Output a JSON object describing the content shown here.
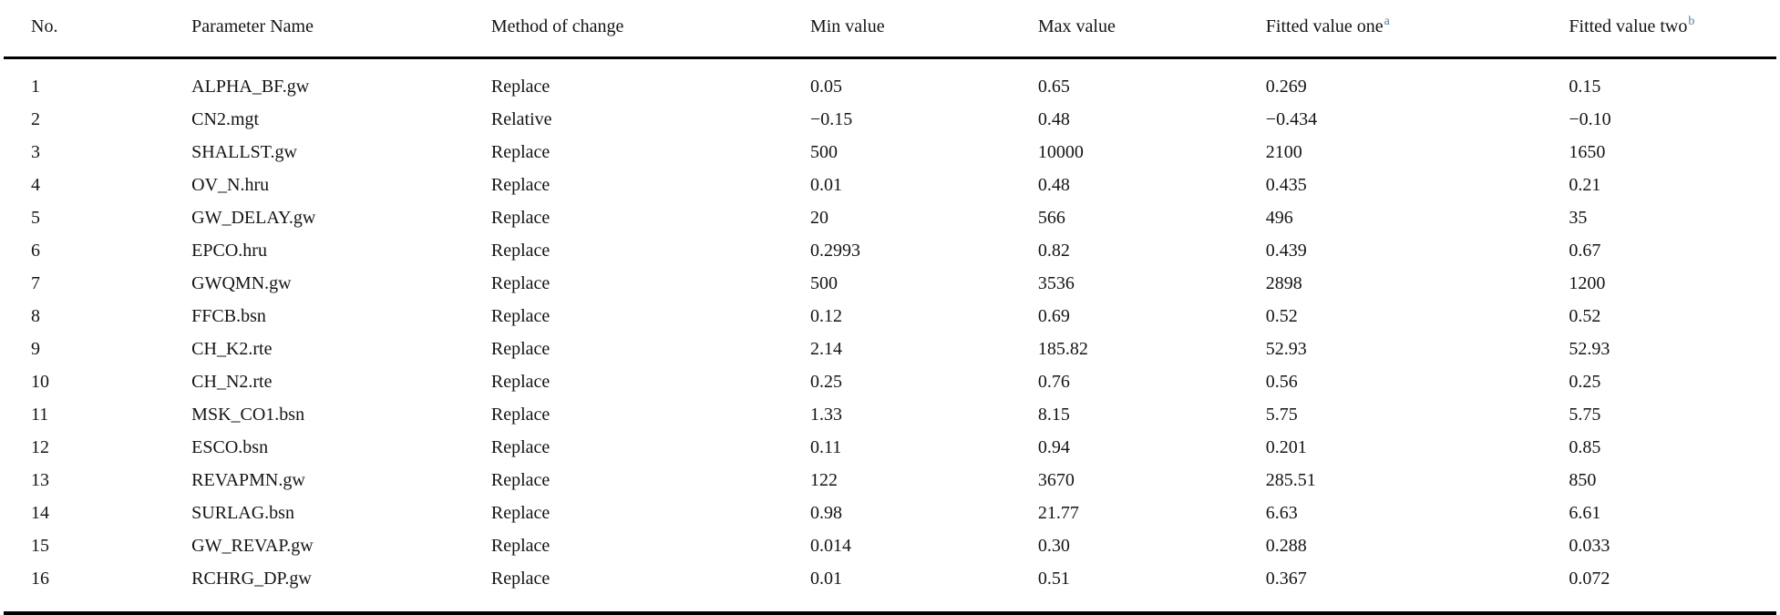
{
  "table": {
    "columns": [
      {
        "label": "No.",
        "sup": ""
      },
      {
        "label": "Parameter Name",
        "sup": ""
      },
      {
        "label": "Method of change",
        "sup": ""
      },
      {
        "label": "Min value",
        "sup": ""
      },
      {
        "label": "Max value",
        "sup": ""
      },
      {
        "label": "Fitted value one",
        "sup": "a"
      },
      {
        "label": "Fitted value two",
        "sup": "b"
      }
    ],
    "rows": [
      {
        "no": "1",
        "parameter": "ALPHA_BF.gw",
        "method": "Replace",
        "min": "0.05",
        "max": "0.65",
        "fitted_one": "0.269",
        "fitted_two": "0.15"
      },
      {
        "no": "2",
        "parameter": "CN2.mgt",
        "method": "Relative",
        "min": "−0.15",
        "max": "0.48",
        "fitted_one": "−0.434",
        "fitted_two": "−0.10"
      },
      {
        "no": "3",
        "parameter": "SHALLST.gw",
        "method": "Replace",
        "min": "500",
        "max": "10000",
        "fitted_one": "2100",
        "fitted_two": "1650"
      },
      {
        "no": "4",
        "parameter": "OV_N.hru",
        "method": "Replace",
        "min": "0.01",
        "max": "0.48",
        "fitted_one": "0.435",
        "fitted_two": "0.21"
      },
      {
        "no": "5",
        "parameter": "GW_DELAY.gw",
        "method": "Replace",
        "min": "20",
        "max": "566",
        "fitted_one": "496",
        "fitted_two": "35"
      },
      {
        "no": "6",
        "parameter": "EPCO.hru",
        "method": "Replace",
        "min": "0.2993",
        "max": "0.82",
        "fitted_one": "0.439",
        "fitted_two": "0.67"
      },
      {
        "no": "7",
        "parameter": "GWQMN.gw",
        "method": "Replace",
        "min": "500",
        "max": "3536",
        "fitted_one": "2898",
        "fitted_two": "1200"
      },
      {
        "no": "8",
        "parameter": "FFCB.bsn",
        "method": "Replace",
        "min": "0.12",
        "max": "0.69",
        "fitted_one": "0.52",
        "fitted_two": "0.52"
      },
      {
        "no": "9",
        "parameter": "CH_K2.rte",
        "method": "Replace",
        "min": "2.14",
        "max": "185.82",
        "fitted_one": "52.93",
        "fitted_two": "52.93"
      },
      {
        "no": "10",
        "parameter": "CH_N2.rte",
        "method": "Replace",
        "min": "0.25",
        "max": "0.76",
        "fitted_one": "0.56",
        "fitted_two": "0.25"
      },
      {
        "no": "11",
        "parameter": "MSK_CO1.bsn",
        "method": "Replace",
        "min": "1.33",
        "max": "8.15",
        "fitted_one": "5.75",
        "fitted_two": "5.75"
      },
      {
        "no": "12",
        "parameter": "ESCO.bsn",
        "method": "Replace",
        "min": "0.11",
        "max": "0.94",
        "fitted_one": "0.201",
        "fitted_two": "0.85"
      },
      {
        "no": "13",
        "parameter": "REVAPMN.gw",
        "method": "Replace",
        "min": "122",
        "max": "3670",
        "fitted_one": "285.51",
        "fitted_two": "850"
      },
      {
        "no": "14",
        "parameter": "SURLAG.bsn",
        "method": "Replace",
        "min": "0.98",
        "max": "21.77",
        "fitted_one": "6.63",
        "fitted_two": "6.61"
      },
      {
        "no": "15",
        "parameter": "GW_REVAP.gw",
        "method": "Replace",
        "min": "0.014",
        "max": "0.30",
        "fitted_one": "0.288",
        "fitted_two": "0.033"
      },
      {
        "no": "16",
        "parameter": "RCHRG_DP.gw",
        "method": "Replace",
        "min": "0.01",
        "max": "0.51",
        "fitted_one": "0.367",
        "fitted_two": "0.072"
      }
    ],
    "colors": {
      "text": "#141414",
      "rule": "#000000",
      "footnote_superscript": "#527da3"
    }
  },
  "chart_data": {
    "type": "table",
    "title": "",
    "columns": [
      "No.",
      "Parameter Name",
      "Method of change",
      "Min value",
      "Max value",
      "Fitted value one",
      "Fitted value two"
    ],
    "rows": [
      [
        "1",
        "ALPHA_BF.gw",
        "Replace",
        "0.05",
        "0.65",
        "0.269",
        "0.15"
      ],
      [
        "2",
        "CN2.mgt",
        "Relative",
        "−0.15",
        "0.48",
        "−0.434",
        "−0.10"
      ],
      [
        "3",
        "SHALLST.gw",
        "Replace",
        "500",
        "10000",
        "2100",
        "1650"
      ],
      [
        "4",
        "OV_N.hru",
        "Replace",
        "0.01",
        "0.48",
        "0.435",
        "0.21"
      ],
      [
        "5",
        "GW_DELAY.gw",
        "Replace",
        "20",
        "566",
        "496",
        "35"
      ],
      [
        "6",
        "EPCO.hru",
        "Replace",
        "0.2993",
        "0.82",
        "0.439",
        "0.67"
      ],
      [
        "7",
        "GWQMN.gw",
        "Replace",
        "500",
        "3536",
        "2898",
        "1200"
      ],
      [
        "8",
        "FFCB.bsn",
        "Replace",
        "0.12",
        "0.69",
        "0.52",
        "0.52"
      ],
      [
        "9",
        "CH_K2.rte",
        "Replace",
        "2.14",
        "185.82",
        "52.93",
        "52.93"
      ],
      [
        "10",
        "CH_N2.rte",
        "Replace",
        "0.25",
        "0.76",
        "0.56",
        "0.25"
      ],
      [
        "11",
        "MSK_CO1.bsn",
        "Replace",
        "1.33",
        "8.15",
        "5.75",
        "5.75"
      ],
      [
        "12",
        "ESCO.bsn",
        "Replace",
        "0.11",
        "0.94",
        "0.201",
        "0.85"
      ],
      [
        "13",
        "REVAPMN.gw",
        "Replace",
        "122",
        "3670",
        "285.51",
        "850"
      ],
      [
        "14",
        "SURLAG.bsn",
        "Replace",
        "0.98",
        "21.77",
        "6.63",
        "6.61"
      ],
      [
        "15",
        "GW_REVAP.gw",
        "Replace",
        "0.014",
        "0.30",
        "0.288",
        "0.033"
      ],
      [
        "16",
        "RCHRG_DP.gw",
        "Replace",
        "0.01",
        "0.51",
        "0.367",
        "0.072"
      ]
    ]
  }
}
